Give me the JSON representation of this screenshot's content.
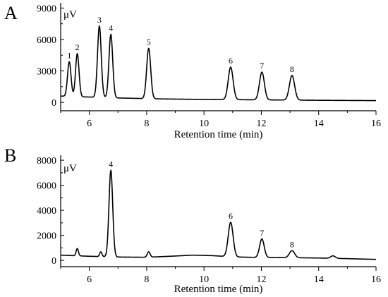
{
  "chart_data": [
    {
      "panel": "A",
      "type": "line",
      "xlabel": "Retention time (min)",
      "ylabel": "μV",
      "xlim": [
        5,
        16
      ],
      "ylim": [
        -800,
        9500
      ],
      "xticks": [
        6,
        8,
        10,
        12,
        14,
        16
      ],
      "yticks": [
        0,
        3000,
        6000,
        9000
      ],
      "baseline": [
        [
          5.0,
          600
        ],
        [
          7.0,
          420
        ],
        [
          8.5,
          330
        ],
        [
          10.0,
          280
        ],
        [
          12.0,
          240
        ],
        [
          14.0,
          200
        ],
        [
          16.0,
          170
        ]
      ],
      "peaks": [
        {
          "label": "1",
          "rt": 5.3,
          "height": 3300,
          "width": 0.06
        },
        {
          "label": "2",
          "rt": 5.58,
          "height": 4100,
          "width": 0.06
        },
        {
          "label": "3",
          "rt": 6.35,
          "height": 6800,
          "width": 0.065
        },
        {
          "label": "4",
          "rt": 6.75,
          "height": 6050,
          "width": 0.065
        },
        {
          "label": "5",
          "rt": 8.07,
          "height": 4800,
          "width": 0.07
        },
        {
          "label": "6",
          "rt": 10.93,
          "height": 3100,
          "width": 0.085
        },
        {
          "label": "7",
          "rt": 12.02,
          "height": 2650,
          "width": 0.085
        },
        {
          "label": "8",
          "rt": 13.07,
          "height": 2350,
          "width": 0.09
        }
      ]
    },
    {
      "panel": "B",
      "type": "line",
      "xlabel": "Retention time (min)",
      "ylabel": "μV",
      "xlim": [
        5,
        16
      ],
      "ylim": [
        -500,
        8400
      ],
      "xticks": [
        6,
        8,
        10,
        12,
        14,
        16
      ],
      "yticks": [
        0,
        2000,
        4000,
        6000,
        8000
      ],
      "baseline": [
        [
          5.0,
          420
        ],
        [
          6.0,
          330
        ],
        [
          7.0,
          270
        ],
        [
          8.0,
          250
        ],
        [
          9.0,
          350
        ],
        [
          9.6,
          420
        ],
        [
          10.3,
          380
        ],
        [
          11.0,
          280
        ],
        [
          12.0,
          230
        ],
        [
          13.0,
          220
        ],
        [
          14.0,
          190
        ],
        [
          15.0,
          140
        ],
        [
          16.0,
          80
        ]
      ],
      "peaks": [
        {
          "label": "",
          "rt": 5.58,
          "height": 580,
          "width": 0.04
        },
        {
          "label": "",
          "rt": 6.4,
          "height": 380,
          "width": 0.04
        },
        {
          "label": "4",
          "rt": 6.75,
          "height": 6900,
          "width": 0.065
        },
        {
          "label": "",
          "rt": 8.07,
          "height": 430,
          "width": 0.05
        },
        {
          "label": "6",
          "rt": 10.93,
          "height": 2750,
          "width": 0.085
        },
        {
          "label": "7",
          "rt": 12.02,
          "height": 1480,
          "width": 0.08
        },
        {
          "label": "8",
          "rt": 13.07,
          "height": 560,
          "width": 0.09
        },
        {
          "label": "",
          "rt": 14.5,
          "height": 200,
          "width": 0.08
        }
      ]
    }
  ]
}
